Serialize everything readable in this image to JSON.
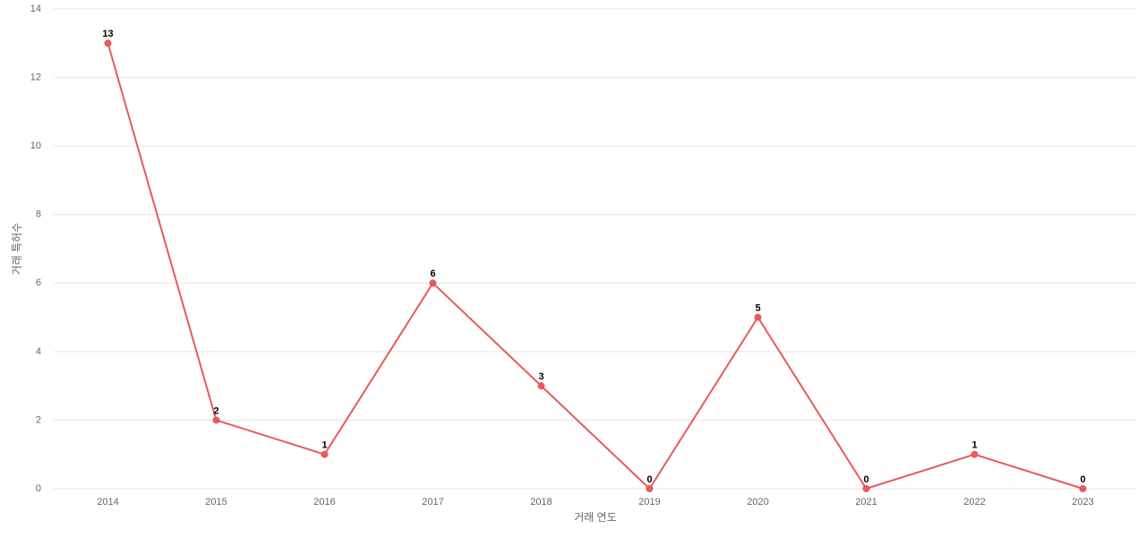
{
  "chart_data": {
    "type": "line",
    "categories": [
      "2014",
      "2015",
      "2016",
      "2017",
      "2018",
      "2019",
      "2020",
      "2021",
      "2022",
      "2023"
    ],
    "values": [
      13,
      2,
      1,
      6,
      3,
      0,
      5,
      0,
      1,
      0
    ],
    "color": "#e85a5a",
    "xlabel": "거래 연도",
    "ylabel": "거래 특허수",
    "ylim": [
      0,
      14
    ],
    "yticks": [
      0,
      2,
      4,
      6,
      8,
      10,
      12,
      14
    ],
    "grid": true
  }
}
